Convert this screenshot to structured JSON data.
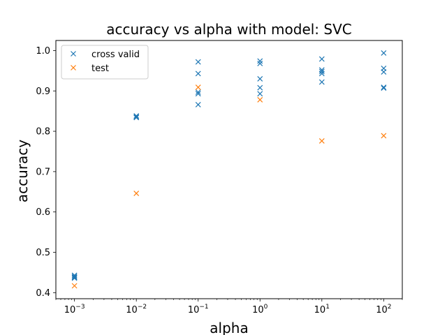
{
  "chart_data": {
    "type": "scatter",
    "title": "accuracy vs alpha with model: SVC",
    "xlabel": "alpha",
    "ylabel": "accuracy",
    "xscale": "log",
    "xlim": [
      0.0005,
      200
    ],
    "ylim": [
      0.385,
      1.025
    ],
    "x_ticks": [
      {
        "value": 0.001,
        "base": "10",
        "exp": "−3"
      },
      {
        "value": 0.01,
        "base": "10",
        "exp": "−2"
      },
      {
        "value": 0.1,
        "base": "10",
        "exp": "−1"
      },
      {
        "value": 1,
        "base": "10",
        "exp": "0"
      },
      {
        "value": 10,
        "base": "10",
        "exp": "1"
      },
      {
        "value": 100,
        "base": "10",
        "exp": "2"
      }
    ],
    "y_ticks": [
      "0.4",
      "0.5",
      "0.6",
      "0.7",
      "0.8",
      "0.9",
      "1.0"
    ],
    "marker": "x",
    "grid": false,
    "legend_position": "top-left",
    "series": [
      {
        "name": "cross valid",
        "color": "#1f77b4",
        "points": [
          [
            0.001,
            0.443
          ],
          [
            0.001,
            0.44
          ],
          [
            0.001,
            0.438
          ],
          [
            0.001,
            0.436
          ],
          [
            0.01,
            0.838
          ],
          [
            0.01,
            0.836
          ],
          [
            0.01,
            0.834
          ],
          [
            0.1,
            0.972
          ],
          [
            0.1,
            0.943
          ],
          [
            0.1,
            0.897
          ],
          [
            0.1,
            0.893
          ],
          [
            0.1,
            0.866
          ],
          [
            1,
            0.974
          ],
          [
            1,
            0.968
          ],
          [
            1,
            0.93
          ],
          [
            1,
            0.908
          ],
          [
            1,
            0.893
          ],
          [
            10,
            0.979
          ],
          [
            10,
            0.952
          ],
          [
            10,
            0.948
          ],
          [
            10,
            0.943
          ],
          [
            10,
            0.922
          ],
          [
            100,
            0.994
          ],
          [
            100,
            0.956
          ],
          [
            100,
            0.947
          ],
          [
            100,
            0.909
          ],
          [
            100,
            0.907
          ]
        ]
      },
      {
        "name": "test",
        "color": "#ff7f0e",
        "points": [
          [
            0.001,
            0.417
          ],
          [
            0.01,
            0.646
          ],
          [
            0.1,
            0.909
          ],
          [
            1,
            0.878
          ],
          [
            10,
            0.776
          ],
          [
            100,
            0.789
          ]
        ]
      }
    ]
  }
}
